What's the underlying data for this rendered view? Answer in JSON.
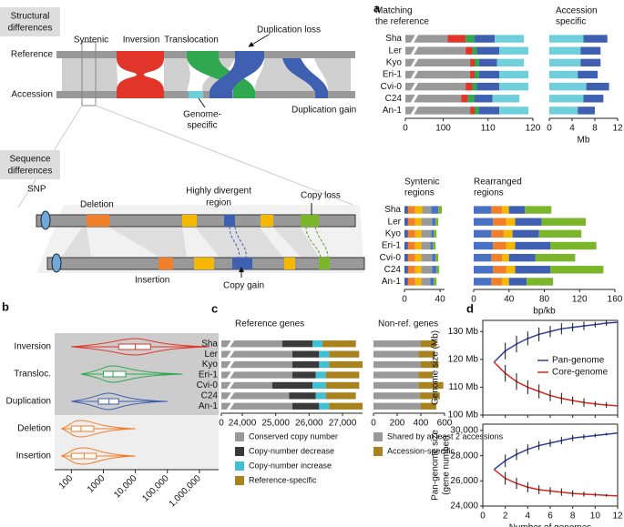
{
  "diagram": {
    "panel_a": "a",
    "structural": [
      "Structural",
      "differences"
    ],
    "syntenic": "Syntenic",
    "inversion": "Inversion",
    "translocation": "Translocation",
    "dup_loss": "Duplication loss",
    "reference": "Reference",
    "accession": "Accession",
    "genome_specific": [
      "Genome-",
      "specific"
    ],
    "dup_gain": "Duplication gain",
    "sequence": [
      "Sequence",
      "differences"
    ],
    "snp": "SNP",
    "deletion": "Deletion",
    "divergent": [
      "Highly divergent",
      "region"
    ],
    "copy_loss": "Copy loss",
    "insertion": "Insertion",
    "copy_gain": "Copy gain",
    "panel_b": "b",
    "panel_c": "c",
    "panel_d": "d"
  },
  "chart_data": [
    {
      "type": "hbar",
      "title": [
        "Matching",
        "the reference"
      ],
      "categories": [
        "Sha",
        "Ler",
        "Kyo",
        "Eri-1",
        "Cvi-0",
        "C24",
        "An-1"
      ],
      "xlim": [
        0,
        120
      ],
      "xbreak": [
        2,
        94
      ],
      "xticks": [
        0,
        100,
        110,
        120
      ],
      "series": [
        {
          "color": "#999999",
          "values": [
            101,
            105,
            106,
            106,
            105,
            104,
            106
          ]
        },
        {
          "color": "#e2352a",
          "values": [
            4,
            1.5,
            1,
            1,
            1.5,
            1.5,
            1
          ]
        },
        {
          "color": "#2fa84f",
          "values": [
            2,
            1,
            1,
            1,
            1,
            1.5,
            1
          ]
        },
        {
          "color": "#3f5fb0",
          "values": [
            4.5,
            5,
            4,
            4.5,
            5,
            4,
            4.5
          ]
        },
        {
          "color": "#6fd0dc",
          "values": [
            6.5,
            6.5,
            6,
            6.5,
            6.5,
            6,
            6.5
          ]
        }
      ]
    },
    {
      "type": "hbar",
      "title": [
        "Accession",
        "specific"
      ],
      "categories": [
        "Sha",
        "Ler",
        "Kyo",
        "Eri-1",
        "Cvi-0",
        "C24",
        "An-1"
      ],
      "xlim": [
        0,
        12
      ],
      "xticks": [
        0,
        4,
        8,
        12
      ],
      "xlabel": "Mb",
      "series": [
        {
          "color": "#6fd0dc",
          "values": [
            6,
            5.5,
            5.5,
            5,
            6.5,
            6,
            5
          ]
        },
        {
          "color": "#3f5fb0",
          "values": [
            4.2,
            3.5,
            3.5,
            3.5,
            4,
            3.5,
            3
          ]
        }
      ]
    },
    {
      "type": "hbar",
      "title": [
        "Syntenic",
        "regions"
      ],
      "categories": [
        "Sha",
        "Ler",
        "Kyo",
        "Eri-1",
        "Cvi-0",
        "C24",
        "An-1"
      ],
      "xlim": [
        0,
        45
      ],
      "xticks": [
        0,
        40
      ],
      "series": [
        {
          "color": "#3f5fb0",
          "values": [
            4,
            4,
            4,
            4,
            4,
            4,
            4
          ]
        },
        {
          "color": "#f07f2a",
          "values": [
            8,
            8,
            8,
            8,
            8,
            8,
            8
          ]
        },
        {
          "color": "#f5b800",
          "values": [
            8,
            7,
            7,
            7,
            7,
            7,
            7
          ]
        },
        {
          "color": "#999999",
          "values": [
            10,
            12,
            11,
            10,
            12,
            12,
            10
          ]
        },
        {
          "color": "#4a72c4",
          "values": [
            8,
            4,
            3,
            3,
            4,
            5,
            4
          ]
        },
        {
          "color": "#7ab52a",
          "values": [
            4,
            3,
            3,
            3,
            3,
            3,
            3
          ]
        }
      ]
    },
    {
      "type": "hbar",
      "title": [
        "Rearranged",
        "regions"
      ],
      "categories": [
        "Sha",
        "Ler",
        "Kyo",
        "Eri-1",
        "Cvi-0",
        "C24",
        "An-1"
      ],
      "xlim": [
        0,
        160
      ],
      "xticks": [
        0,
        40,
        80,
        120,
        160
      ],
      "xlabel": "bp/kb",
      "series": [
        {
          "color": "#4a72c4",
          "values": [
            20,
            22,
            20,
            22,
            20,
            22,
            20
          ]
        },
        {
          "color": "#f07f2a",
          "values": [
            12,
            15,
            14,
            15,
            12,
            15,
            12
          ]
        },
        {
          "color": "#f5b800",
          "values": [
            8,
            10,
            10,
            10,
            8,
            10,
            8
          ]
        },
        {
          "color": "#3f5fb0",
          "values": [
            18,
            30,
            30,
            40,
            30,
            40,
            20
          ]
        },
        {
          "color": "#7ab52a",
          "values": [
            30,
            50,
            48,
            52,
            45,
            60,
            30
          ]
        }
      ]
    },
    {
      "type": "violin",
      "categories": [
        "Inversion",
        "Transloc.",
        "Duplication",
        "Deletion",
        "Insertion"
      ],
      "colors": [
        "#e2352a",
        "#2fa84f",
        "#3f5fb0",
        "#f07f2a",
        "#f07f2a"
      ],
      "xlog": true,
      "xlim": [
        30,
        4000000
      ],
      "xticks": [
        100,
        1000,
        {
          "value": 10000,
          "label": "10,000"
        },
        {
          "value": 100000,
          "label": "100,000"
        },
        {
          "value": 1000000,
          "label": "1,000,000"
        }
      ],
      "min": [
        100,
        200,
        100,
        50,
        50
      ],
      "q1": [
        3000,
        1000,
        700,
        100,
        100
      ],
      "median": [
        10000,
        2000,
        1500,
        200,
        250
      ],
      "q3": [
        30000,
        5000,
        3000,
        500,
        600
      ],
      "max": [
        2000000,
        300000,
        100000,
        10000,
        10000
      ]
    },
    {
      "type": "hbar",
      "title": [
        "Reference genes"
      ],
      "categories": [
        "Sha",
        "Ler",
        "Kyo",
        "Eri-1",
        "Cvi-0",
        "C24",
        "An-1"
      ],
      "xlim": [
        0,
        27600
      ],
      "xbreak": [
        300,
        23700
      ],
      "xticks": [
        0,
        {
          "value": 24000,
          "label": "24,000"
        },
        {
          "value": 25000,
          "label": "25,000"
        },
        {
          "value": 26000,
          "label": "26,000"
        },
        {
          "value": 27000,
          "label": "27,000"
        }
      ],
      "series": [
        {
          "name": "Conserved copy number",
          "color": "#999999",
          "values": [
            25200,
            25500,
            25500,
            25500,
            24900,
            25400,
            25500
          ]
        },
        {
          "name": "Copy-number decrease",
          "color": "#3a3a3a",
          "values": [
            900,
            800,
            800,
            700,
            1200,
            800,
            800
          ]
        },
        {
          "name": "Copy-number increase",
          "color": "#3fc0d4",
          "values": [
            300,
            300,
            300,
            300,
            400,
            300,
            300
          ]
        },
        {
          "name": "Reference-specific",
          "color": "#a8821c",
          "values": [
            1000,
            900,
            1000,
            1000,
            1000,
            900,
            1000
          ]
        }
      ]
    },
    {
      "type": "hbar",
      "title": [
        "Non-ref. genes"
      ],
      "categories": [
        "Sha",
        "Ler",
        "Kyo",
        "Eri-1",
        "Cvi-0",
        "C24",
        "An-1"
      ],
      "xlim": [
        0,
        600
      ],
      "xticks": [
        0,
        200,
        400,
        600
      ],
      "series": [
        {
          "name": "Shared by at least 2 accessions",
          "color": "#999999",
          "values": [
            400,
            380,
            400,
            380,
            380,
            390,
            400
          ]
        },
        {
          "name": "Accession-specific",
          "color": "#a8821c",
          "values": [
            130,
            140,
            150,
            120,
            210,
            170,
            130
          ]
        }
      ]
    },
    {
      "type": "line",
      "ylabel": [
        "Genome size (Mb)"
      ],
      "x": [
        1,
        2,
        3,
        4,
        5,
        6,
        7,
        8,
        9,
        10,
        11,
        12
      ],
      "xlim": [
        0,
        12
      ],
      "xticks": [
        0,
        2,
        4,
        6,
        8,
        10,
        12
      ],
      "ylim": [
        100,
        134
      ],
      "yticks": [
        {
          "value": 100,
          "label": "100 Mb"
        },
        {
          "value": 110,
          "label": "110 Mb"
        },
        {
          "value": 120,
          "label": "120 Mb"
        },
        {
          "value": 130,
          "label": "130 Mb"
        }
      ],
      "legend": "right",
      "series": [
        {
          "name": "Pan-genome",
          "color": "#2b3f9e",
          "values": [
            119,
            123,
            125.5,
            127.5,
            129,
            130,
            131,
            131.5,
            132,
            132.5,
            133,
            133.3
          ],
          "errors": [
            0,
            3,
            3,
            2.5,
            2.5,
            2,
            2,
            1.5,
            1.5,
            1,
            1,
            0
          ]
        },
        {
          "name": "Core-genome",
          "color": "#d7261e",
          "values": [
            119,
            115,
            112,
            110,
            108.5,
            107,
            106,
            105.2,
            104.5,
            104,
            103.6,
            103.3
          ],
          "errors": [
            0,
            3,
            3,
            2.5,
            2.5,
            2,
            2,
            1.5,
            1.5,
            1,
            1,
            0
          ]
        }
      ]
    },
    {
      "type": "line",
      "ylabel": [
        "Pan-genome size",
        "(gene number)"
      ],
      "xlabel": "Number of genomes",
      "x": [
        1,
        2,
        3,
        4,
        5,
        6,
        7,
        8,
        9,
        10,
        11,
        12
      ],
      "xlim": [
        0,
        12
      ],
      "xticks": [
        0,
        2,
        4,
        6,
        8,
        10,
        12
      ],
      "ylim": [
        24000,
        30500
      ],
      "yticks": [
        {
          "value": 24000,
          "label": "24,000"
        },
        {
          "value": 26000,
          "label": "26,000"
        },
        {
          "value": 28000,
          "label": "28,000"
        },
        {
          "value": 30000,
          "label": "30,000"
        }
      ],
      "series": [
        {
          "color": "#2b3f9e",
          "values": [
            26900,
            27600,
            28100,
            28500,
            28800,
            29000,
            29200,
            29400,
            29500,
            29600,
            29700,
            29800
          ],
          "errors": [
            0,
            500,
            450,
            400,
            350,
            300,
            300,
            250,
            200,
            150,
            100,
            0
          ]
        },
        {
          "color": "#d7261e",
          "values": [
            26900,
            26200,
            25800,
            25500,
            25300,
            25200,
            25100,
            25000,
            24950,
            24900,
            24850,
            24800
          ],
          "errors": [
            0,
            500,
            450,
            400,
            350,
            300,
            300,
            250,
            200,
            150,
            100,
            0
          ]
        }
      ]
    }
  ]
}
